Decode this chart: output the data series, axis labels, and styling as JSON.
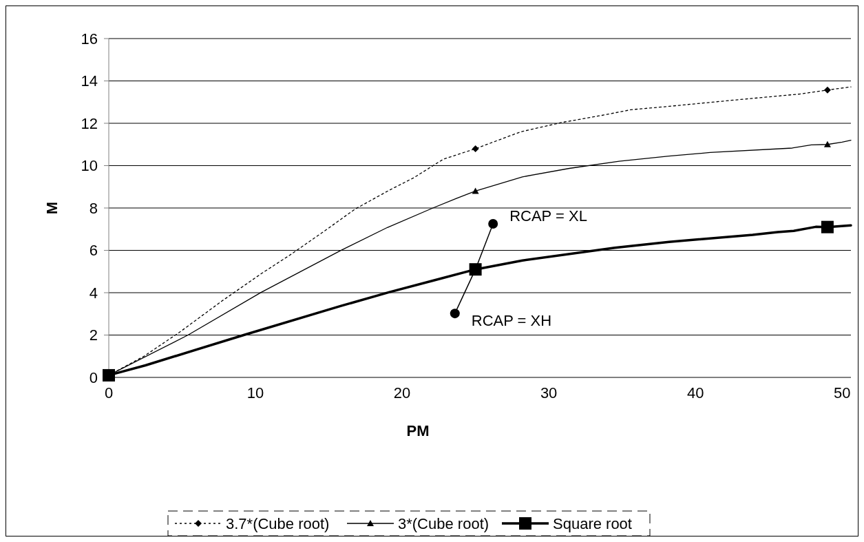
{
  "chart_data": {
    "type": "line",
    "xlabel": "PM",
    "ylabel": "M",
    "xlim": [
      0,
      50.6
    ],
    "ylim": [
      0,
      16
    ],
    "xticks": [
      0,
      10,
      20,
      30,
      40,
      50
    ],
    "yticks": [
      0,
      2,
      4,
      6,
      8,
      10,
      12,
      14,
      16
    ],
    "grid": "y",
    "legend": "bottom",
    "series": [
      {
        "name": "3.7*(Cube root)",
        "color": "#000000",
        "line_style": "dotted",
        "x": [
          0,
          2.4,
          4.9,
          7.7,
          10.4,
          12.4,
          14.6,
          16.8,
          19.1,
          20.8,
          22.8,
          25,
          28.1,
          30.9,
          33.6,
          35.6,
          38.2,
          42.4,
          44.9,
          47.1,
          49,
          50.6
        ],
        "values": [
          0.1,
          1.0,
          2.17,
          3.6,
          4.9,
          5.8,
          6.86,
          7.95,
          8.83,
          9.43,
          10.3,
          10.8,
          11.6,
          12.04,
          12.37,
          12.64,
          12.8,
          13.08,
          13.24,
          13.38,
          13.57,
          13.72
        ]
      },
      {
        "name": "3*(Cube root)",
        "color": "#000000",
        "line_style": "solid",
        "x": [
          0,
          5.4,
          10.4,
          15.8,
          19.0,
          22.1,
          23.7,
          25,
          28.2,
          31.4,
          34.8,
          38.2,
          41.0,
          46.6,
          47.9,
          49,
          50,
          50.6
        ],
        "values": [
          0.1,
          2.0,
          4.02,
          5.99,
          7.08,
          8.0,
          8.45,
          8.8,
          9.47,
          9.87,
          10.21,
          10.45,
          10.62,
          10.83,
          10.98,
          11.0,
          11.11,
          11.2
        ]
      },
      {
        "name": "Square root",
        "color": "#000000",
        "line_style": "solid",
        "x": [
          0,
          2.5,
          9.2,
          15.8,
          19.1,
          22.1,
          25,
          28.2,
          34.5,
          38.2,
          43.9,
          45.6,
          46.7,
          48.2,
          49,
          50.6
        ],
        "values": [
          0.1,
          0.57,
          2.0,
          3.37,
          4.02,
          4.57,
          5.1,
          5.52,
          6.12,
          6.4,
          6.73,
          6.86,
          6.92,
          7.11,
          7.1,
          7.18
        ]
      },
      {
        "type": "scatter",
        "color": "#000000",
        "marker": "diamond",
        "x": [
          25,
          49
        ],
        "values": [
          10.8,
          13.57
        ]
      },
      {
        "type": "scatter",
        "color": "#000000",
        "marker": "triangle",
        "x": [
          25,
          49
        ],
        "values": [
          8.8,
          11.0
        ]
      },
      {
        "type": "scatter",
        "color": "#000000",
        "marker": "square",
        "x": [
          0,
          25,
          49
        ],
        "values": [
          0.1,
          5.1,
          7.1
        ]
      }
    ],
    "annotations": [
      {
        "text": "RCAP = XL",
        "x": 26.2,
        "y": 7.25
      },
      {
        "text": "RCAP = XH",
        "x": 23.6,
        "y": 3.02
      }
    ]
  }
}
